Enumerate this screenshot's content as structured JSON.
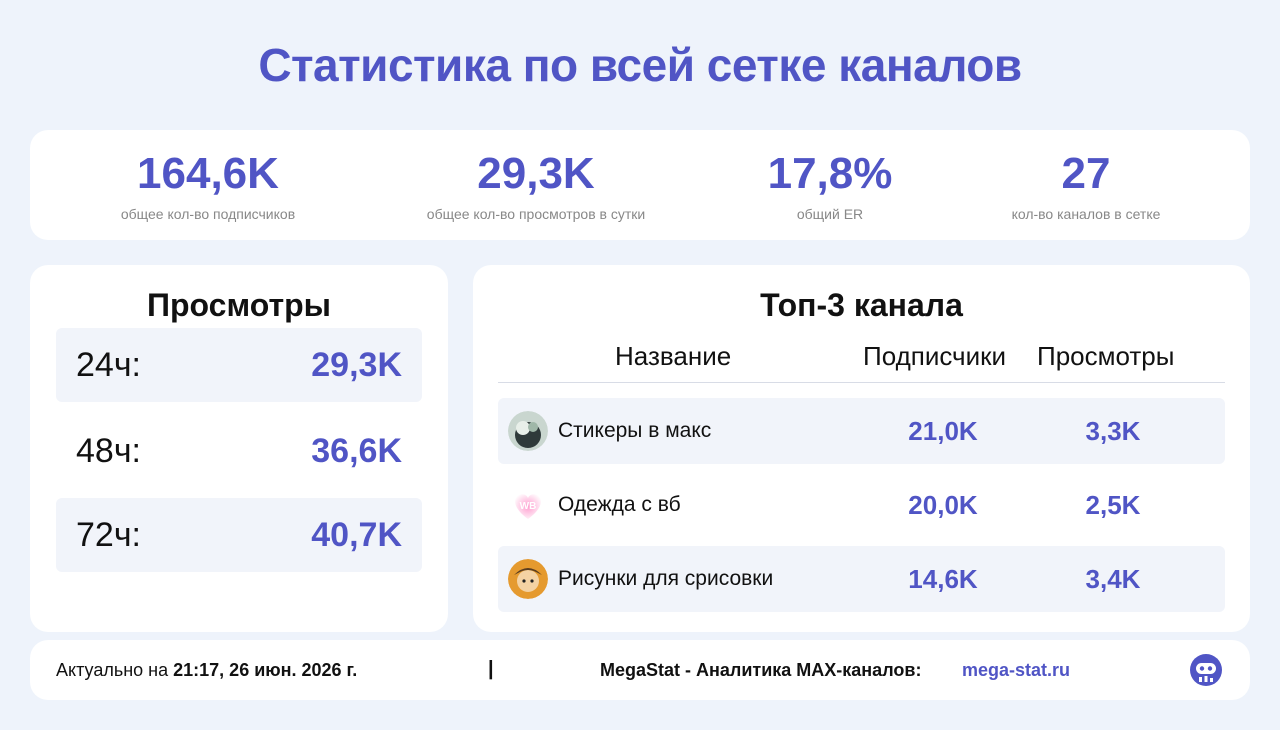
{
  "title": "Статистика по всей сетке каналов",
  "stats": [
    {
      "value": "164,6K",
      "label": "общее кол-во подписчиков"
    },
    {
      "value": "29,3K",
      "label": "общее кол-во просмотров в сутки"
    },
    {
      "value": "17,8%",
      "label": "общий ER"
    },
    {
      "value": "27",
      "label": "кол-во каналов в сетке"
    }
  ],
  "views": {
    "heading": "Просмотры",
    "rows": [
      {
        "period": "24ч:",
        "value": "29,3K"
      },
      {
        "period": "48ч:",
        "value": "36,6K"
      },
      {
        "period": "72ч:",
        "value": "40,7K"
      }
    ]
  },
  "top3": {
    "heading": "Топ-3 канала",
    "columns": {
      "name": "Название",
      "subscribers": "Подписчики",
      "views": "Просмотры"
    },
    "rows": [
      {
        "name": "Стикеры в макс",
        "subscribers": "21,0K",
        "views": "3,3K",
        "avatar": "sticker-avatar-icon"
      },
      {
        "name": "Одежда с вб",
        "subscribers": "20,0K",
        "views": "2,5K",
        "avatar": "wb-heart-icon",
        "avatar_text": "WB"
      },
      {
        "name": "Рисунки для срисовки",
        "subscribers": "14,6K",
        "views": "3,4K",
        "avatar": "drawing-avatar-icon"
      }
    ]
  },
  "footer": {
    "prefix": "Актуально на",
    "datetime": "21:17, 26 июн. 2026 г.",
    "separator": "|",
    "brand": "MegaStat - Аналитика MAX-каналов:",
    "site": "mega-stat.ru",
    "logo": "megastat-logo-icon"
  },
  "colors": {
    "accent": "#5055c5",
    "background": "#eef3fb",
    "row_shade": "#f1f4fa"
  }
}
